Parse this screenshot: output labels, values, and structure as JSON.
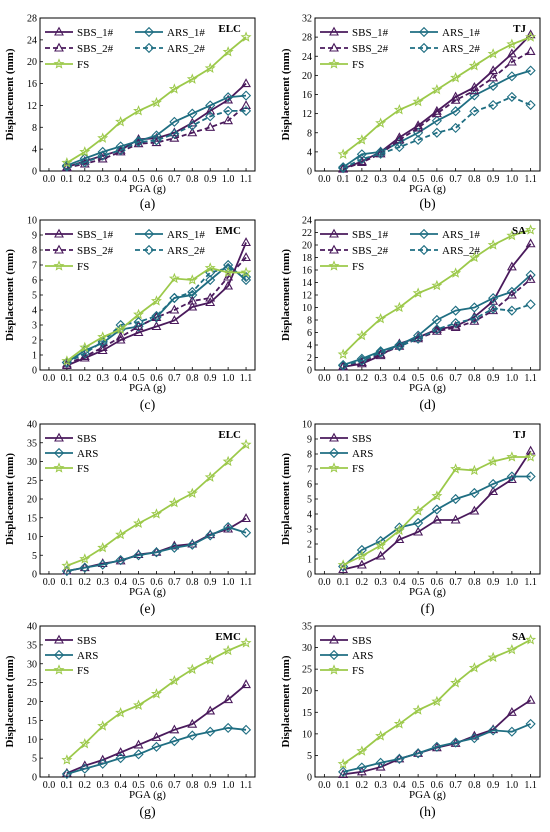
{
  "colors": {
    "SBS": "#4a1a5c",
    "ARS": "#1f6e82",
    "FS": "#9cc94a"
  },
  "chart_data": [
    {
      "type": "line",
      "panel_label": "(a)",
      "site_label": "ELC",
      "xlabel": "PGA (g)",
      "ylabel": "Displacement (mm)",
      "xlim": [
        0.0,
        1.1
      ],
      "ylim": [
        0,
        28
      ],
      "yticks": [
        0,
        4,
        8,
        12,
        16,
        20,
        24,
        28
      ],
      "legend_cols": 2,
      "x": [
        0.1,
        0.2,
        0.3,
        0.4,
        0.5,
        0.6,
        0.7,
        0.8,
        0.9,
        1.0,
        1.1
      ],
      "series": [
        {
          "name": "SBS_1#",
          "key": "SBS",
          "dashed": false,
          "values": [
            0.7,
            1.8,
            2.8,
            3.8,
            5.8,
            6.0,
            7.0,
            8.8,
            11.0,
            13.0,
            16.0
          ]
        },
        {
          "name": "ARS_1#",
          "key": "ARS",
          "dashed": false,
          "values": [
            1.0,
            2.3,
            3.5,
            4.5,
            5.5,
            6.5,
            9.0,
            10.5,
            12.0,
            13.5,
            13.8
          ]
        },
        {
          "name": "SBS_2#",
          "key": "SBS",
          "dashed": true,
          "values": [
            0.6,
            1.3,
            2.2,
            3.5,
            5.0,
            5.2,
            6.0,
            7.0,
            8.0,
            9.2,
            12.0
          ]
        },
        {
          "name": "ARS_2#",
          "key": "ARS",
          "dashed": true,
          "values": [
            0.8,
            1.6,
            2.8,
            3.8,
            5.3,
            5.6,
            6.8,
            8.3,
            10.0,
            11.0,
            11.0
          ]
        },
        {
          "name": "FS",
          "key": "FS",
          "dashed": false,
          "values": [
            1.5,
            3.5,
            6.0,
            9.0,
            11.0,
            12.5,
            15.0,
            16.8,
            18.8,
            21.8,
            24.5
          ]
        }
      ]
    },
    {
      "type": "line",
      "panel_label": "(b)",
      "site_label": "TJ",
      "xlabel": "PGA (g)",
      "ylabel": "Displacement (mm)",
      "xlim": [
        0.0,
        1.1
      ],
      "ylim": [
        0,
        32
      ],
      "yticks": [
        0,
        4,
        8,
        12,
        16,
        20,
        24,
        28,
        32
      ],
      "legend_cols": 2,
      "x": [
        0.1,
        0.2,
        0.3,
        0.4,
        0.5,
        0.6,
        0.7,
        0.8,
        0.9,
        1.0,
        1.1
      ],
      "series": [
        {
          "name": "SBS_1#",
          "key": "SBS",
          "dashed": false,
          "values": [
            0.5,
            2.0,
            4.0,
            7.0,
            9.5,
            12.5,
            15.5,
            17.5,
            21.0,
            24.5,
            28.5
          ]
        },
        {
          "name": "ARS_1#",
          "key": "ARS",
          "dashed": false,
          "values": [
            0.8,
            3.5,
            4.0,
            6.0,
            8.0,
            10.5,
            12.5,
            15.8,
            17.8,
            19.8,
            21.0
          ]
        },
        {
          "name": "SBS_2#",
          "key": "SBS",
          "dashed": true,
          "values": [
            0.4,
            1.8,
            3.6,
            6.5,
            9.0,
            12.0,
            14.8,
            16.8,
            19.5,
            22.8,
            25.0
          ]
        },
        {
          "name": "ARS_2#",
          "key": "ARS",
          "dashed": true,
          "values": [
            0.6,
            2.5,
            3.6,
            5.0,
            6.5,
            8.0,
            9.0,
            12.5,
            13.8,
            15.5,
            13.8
          ]
        },
        {
          "name": "FS",
          "key": "FS",
          "dashed": false,
          "values": [
            3.5,
            6.5,
            10.0,
            12.8,
            14.5,
            17.0,
            19.5,
            22.0,
            24.5,
            26.5,
            28.0
          ]
        }
      ]
    },
    {
      "type": "line",
      "panel_label": "(c)",
      "site_label": "EMC",
      "xlabel": "PGA (g)",
      "ylabel": "Displacement (mm)",
      "xlim": [
        0.0,
        1.1
      ],
      "ylim": [
        0,
        10
      ],
      "yticks": [
        0,
        1,
        2,
        3,
        4,
        5,
        6,
        7,
        8,
        9,
        10
      ],
      "legend_cols": 2,
      "x": [
        0.1,
        0.2,
        0.3,
        0.4,
        0.5,
        0.6,
        0.7,
        0.8,
        0.9,
        1.0,
        1.1
      ],
      "series": [
        {
          "name": "SBS_1#",
          "key": "SBS",
          "dashed": false,
          "values": [
            0.3,
            0.8,
            1.3,
            2.0,
            2.5,
            2.9,
            3.3,
            4.2,
            4.5,
            5.6,
            8.5
          ]
        },
        {
          "name": "ARS_1#",
          "key": "ARS",
          "dashed": false,
          "values": [
            0.5,
            1.3,
            1.8,
            2.7,
            2.9,
            3.5,
            4.8,
            5.0,
            6.0,
            7.0,
            6.0
          ]
        },
        {
          "name": "SBS_2#",
          "key": "SBS",
          "dashed": true,
          "values": [
            0.4,
            0.9,
            1.5,
            2.2,
            2.9,
            3.5,
            4.0,
            4.6,
            4.8,
            6.2,
            7.5
          ]
        },
        {
          "name": "ARS_2#",
          "key": "ARS",
          "dashed": true,
          "values": [
            0.5,
            1.1,
            1.9,
            3.0,
            3.2,
            3.6,
            4.8,
            5.2,
            6.5,
            6.8,
            6.2
          ]
        },
        {
          "name": "FS",
          "key": "FS",
          "dashed": false,
          "values": [
            0.6,
            1.5,
            2.2,
            2.7,
            3.7,
            4.6,
            6.1,
            6.0,
            6.8,
            6.5,
            6.5
          ]
        }
      ]
    },
    {
      "type": "line",
      "panel_label": "(d)",
      "site_label": "SA",
      "xlabel": "PGA (g)",
      "ylabel": "Displacement (mm)",
      "xlim": [
        0.0,
        1.1
      ],
      "ylim": [
        0,
        24
      ],
      "yticks": [
        0,
        2,
        4,
        6,
        8,
        10,
        12,
        14,
        16,
        18,
        20,
        22,
        24
      ],
      "legend_cols": 2,
      "x": [
        0.1,
        0.2,
        0.3,
        0.4,
        0.5,
        0.6,
        0.7,
        0.8,
        0.9,
        1.0,
        1.1
      ],
      "series": [
        {
          "name": "SBS_1#",
          "key": "SBS",
          "dashed": false,
          "values": [
            0.5,
            1.0,
            2.3,
            4.2,
            5.2,
            6.5,
            7.0,
            8.5,
            11.0,
            16.5,
            20.2
          ]
        },
        {
          "name": "ARS_1#",
          "key": "ARS",
          "dashed": false,
          "values": [
            0.8,
            1.8,
            3.0,
            4.0,
            5.5,
            8.0,
            9.5,
            10.0,
            11.5,
            12.5,
            15.2
          ]
        },
        {
          "name": "SBS_2#",
          "key": "SBS",
          "dashed": true,
          "values": [
            0.6,
            1.2,
            2.5,
            3.8,
            5.0,
            6.2,
            6.8,
            7.8,
            9.5,
            12.0,
            14.5
          ]
        },
        {
          "name": "ARS_2#",
          "key": "ARS",
          "dashed": true,
          "values": [
            0.7,
            1.5,
            2.8,
            3.8,
            5.0,
            6.5,
            7.5,
            8.2,
            9.8,
            9.5,
            10.5
          ]
        },
        {
          "name": "FS",
          "key": "FS",
          "dashed": false,
          "values": [
            2.5,
            5.5,
            8.2,
            10.0,
            12.3,
            13.5,
            15.5,
            18.0,
            20.0,
            21.5,
            22.4
          ]
        }
      ]
    },
    {
      "type": "line",
      "panel_label": "(e)",
      "site_label": "ELC",
      "xlabel": "PGA (g)",
      "ylabel": "Displacement (mm)",
      "xlim": [
        0.0,
        1.1
      ],
      "ylim": [
        0,
        40
      ],
      "yticks": [
        0,
        5,
        10,
        15,
        20,
        25,
        30,
        35,
        40
      ],
      "legend_cols": 1,
      "x": [
        0.1,
        0.2,
        0.3,
        0.4,
        0.5,
        0.6,
        0.7,
        0.8,
        0.9,
        1.0,
        1.1
      ],
      "series": [
        {
          "name": "SBS",
          "key": "SBS",
          "dashed": false,
          "values": [
            0.8,
            1.7,
            2.8,
            3.5,
            5.2,
            5.8,
            7.5,
            8.0,
            10.5,
            12.0,
            14.8
          ]
        },
        {
          "name": "ARS",
          "key": "ARS",
          "dashed": false,
          "values": [
            0.8,
            1.7,
            2.5,
            3.7,
            5.0,
            5.8,
            7.0,
            7.8,
            10.3,
            12.5,
            11.0
          ]
        },
        {
          "name": "FS",
          "key": "FS",
          "dashed": false,
          "values": [
            2.2,
            4.0,
            7.0,
            10.5,
            13.5,
            16.0,
            19.0,
            21.5,
            25.8,
            30.0,
            34.5
          ]
        }
      ]
    },
    {
      "type": "line",
      "panel_label": "(f)",
      "site_label": "TJ",
      "xlabel": "PGA (g)",
      "ylabel": "Displacement (mm)",
      "xlim": [
        0.0,
        1.1
      ],
      "ylim": [
        0,
        10
      ],
      "yticks": [
        0,
        1,
        2,
        3,
        4,
        5,
        6,
        7,
        8,
        9,
        10
      ],
      "legend_cols": 1,
      "x": [
        0.1,
        0.2,
        0.3,
        0.4,
        0.5,
        0.6,
        0.7,
        0.8,
        0.9,
        1.0,
        1.1
      ],
      "series": [
        {
          "name": "SBS",
          "key": "SBS",
          "dashed": false,
          "values": [
            0.3,
            0.6,
            1.2,
            2.3,
            2.8,
            3.6,
            3.6,
            4.2,
            5.5,
            6.3,
            8.2
          ]
        },
        {
          "name": "ARS",
          "key": "ARS",
          "dashed": false,
          "values": [
            0.5,
            1.6,
            2.2,
            3.1,
            3.4,
            4.3,
            5.0,
            5.4,
            6.0,
            6.5,
            6.5
          ]
        },
        {
          "name": "FS",
          "key": "FS",
          "dashed": false,
          "values": [
            0.6,
            1.2,
            1.9,
            2.9,
            4.2,
            5.2,
            7.0,
            6.9,
            7.5,
            7.8,
            7.8
          ]
        }
      ]
    },
    {
      "type": "line",
      "panel_label": "(g)",
      "site_label": "EMC",
      "xlabel": "PGA (g)",
      "ylabel": "Displacement (mm)",
      "xlim": [
        0.0,
        1.1
      ],
      "ylim": [
        0,
        40
      ],
      "yticks": [
        0,
        5,
        10,
        15,
        20,
        25,
        30,
        35,
        40
      ],
      "legend_cols": 1,
      "x": [
        0.1,
        0.2,
        0.3,
        0.4,
        0.5,
        0.6,
        0.7,
        0.8,
        0.9,
        1.0,
        1.1
      ],
      "series": [
        {
          "name": "SBS",
          "key": "SBS",
          "dashed": false,
          "values": [
            1.0,
            3.0,
            4.5,
            6.5,
            8.5,
            10.5,
            12.5,
            14.0,
            17.5,
            20.5,
            24.5
          ]
        },
        {
          "name": "ARS",
          "key": "ARS",
          "dashed": false,
          "values": [
            0.8,
            2.2,
            3.5,
            5.0,
            6.0,
            8.0,
            9.5,
            11.0,
            12.0,
            13.0,
            12.5
          ]
        },
        {
          "name": "FS",
          "key": "FS",
          "dashed": false,
          "values": [
            4.5,
            8.8,
            13.5,
            17.0,
            19.0,
            22.0,
            25.5,
            28.5,
            31.0,
            33.5,
            35.5
          ]
        }
      ]
    },
    {
      "type": "line",
      "panel_label": "(h)",
      "site_label": "SA",
      "xlabel": "PGA (g)",
      "ylabel": "Displacement (mm)",
      "xlim": [
        0.0,
        1.1
      ],
      "ylim": [
        0,
        35
      ],
      "yticks": [
        0,
        5,
        10,
        15,
        20,
        25,
        30,
        35
      ],
      "legend_cols": 1,
      "x": [
        0.1,
        0.2,
        0.3,
        0.4,
        0.5,
        0.6,
        0.7,
        0.8,
        0.9,
        1.0,
        1.1
      ],
      "series": [
        {
          "name": "SBS",
          "key": "SBS",
          "dashed": false,
          "values": [
            0.6,
            1.2,
            2.3,
            4.2,
            5.5,
            6.8,
            7.8,
            9.5,
            11.0,
            15.0,
            17.8
          ]
        },
        {
          "name": "ARS",
          "key": "ARS",
          "dashed": false,
          "values": [
            1.2,
            2.2,
            3.3,
            4.2,
            5.5,
            7.0,
            8.0,
            9.0,
            10.8,
            10.5,
            12.3
          ]
        },
        {
          "name": "FS",
          "key": "FS",
          "dashed": false,
          "values": [
            3.0,
            6.0,
            9.5,
            12.3,
            15.5,
            17.5,
            21.8,
            25.3,
            27.7,
            29.5,
            31.8
          ]
        }
      ]
    }
  ]
}
